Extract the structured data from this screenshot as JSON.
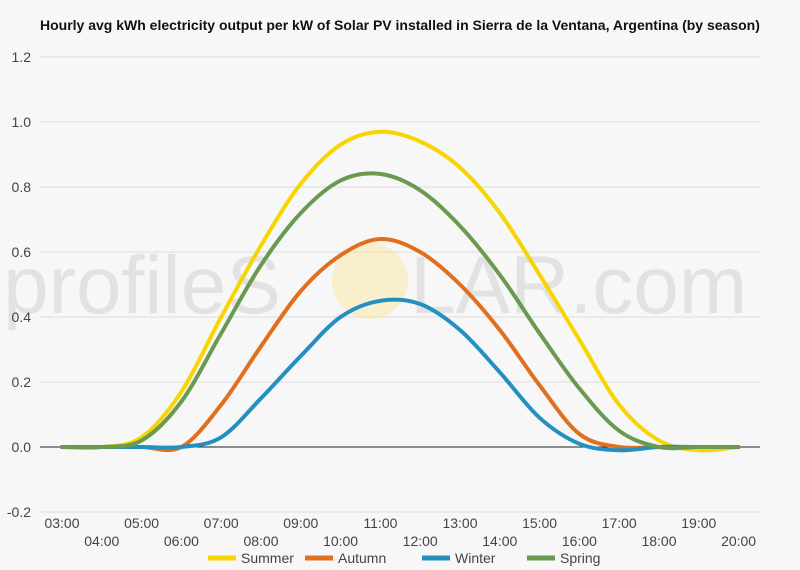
{
  "watermark": {
    "left_text": "profileS",
    "right_text": "LAR.com",
    "sun_color": "#ffe07a"
  },
  "chart_data": {
    "type": "line",
    "title": "Hourly avg kWh electricity output per kW of Solar PV installed in Sierra de la Ventana, Argentina (by season)",
    "xlabel": "",
    "ylabel": "",
    "x": [
      "03:00",
      "04:00",
      "05:00",
      "06:00",
      "07:00",
      "08:00",
      "09:00",
      "10:00",
      "11:00",
      "12:00",
      "13:00",
      "14:00",
      "15:00",
      "16:00",
      "17:00",
      "18:00",
      "19:00",
      "20:00"
    ],
    "ylim": [
      -0.2,
      1.2
    ],
    "yticks": [
      -0.2,
      0.0,
      0.2,
      0.4,
      0.6,
      0.8,
      1.0,
      1.2
    ],
    "ytick_labels": [
      "-0.2",
      "0.0",
      "0.2",
      "0.4",
      "0.6",
      "0.8",
      "1.0",
      "1.2"
    ],
    "grid": true,
    "legend_position": "bottom",
    "series": [
      {
        "name": "Summer",
        "color": "#f7d500",
        "values": [
          0.0,
          0.0,
          0.03,
          0.17,
          0.4,
          0.62,
          0.81,
          0.93,
          0.97,
          0.94,
          0.86,
          0.72,
          0.53,
          0.33,
          0.13,
          0.02,
          -0.01,
          0.0
        ]
      },
      {
        "name": "Autumn",
        "color": "#e07020",
        "values": [
          0.0,
          0.0,
          0.0,
          0.0,
          0.13,
          0.31,
          0.48,
          0.59,
          0.64,
          0.6,
          0.5,
          0.36,
          0.19,
          0.04,
          0.0,
          0.0,
          0.0,
          0.0
        ]
      },
      {
        "name": "Winter",
        "color": "#2590c0",
        "values": [
          0.0,
          0.0,
          0.0,
          0.0,
          0.03,
          0.15,
          0.28,
          0.4,
          0.45,
          0.44,
          0.36,
          0.23,
          0.09,
          0.01,
          -0.01,
          0.0,
          0.0,
          0.0
        ]
      },
      {
        "name": "Spring",
        "color": "#6a9a50",
        "values": [
          0.0,
          0.0,
          0.02,
          0.14,
          0.35,
          0.56,
          0.72,
          0.82,
          0.84,
          0.79,
          0.68,
          0.53,
          0.35,
          0.18,
          0.05,
          0.0,
          0.0,
          0.0
        ]
      }
    ]
  }
}
